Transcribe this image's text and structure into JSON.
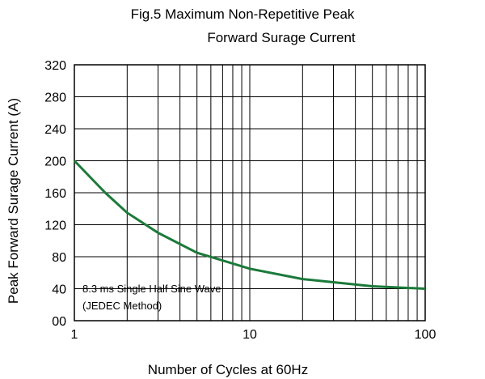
{
  "chart_data": {
    "type": "line",
    "title": "Fig.5  Maximum Non-Repetitive Peak",
    "subtitle": "Forward Surage Current",
    "xlabel": "Number of Cycles at 60Hz",
    "ylabel": "Peak Forward Surage Current (A)",
    "x_scale": "log",
    "xlim": [
      1,
      100
    ],
    "ylim": [
      0,
      320
    ],
    "x_ticks": [
      "1",
      "10",
      "100"
    ],
    "y_ticks": [
      "00",
      "40",
      "80",
      "120",
      "160",
      "200",
      "240",
      "280",
      "320"
    ],
    "grid": true,
    "series": [
      {
        "x": [
          1,
          1.5,
          2,
          3,
          5,
          10,
          20,
          50,
          100
        ],
        "y": [
          200,
          160,
          135,
          110,
          85,
          65,
          52,
          43,
          40
        ]
      }
    ],
    "annotations": [
      "8.3 ms Single Half Sine Wave",
      "(JEDEC Method)"
    ],
    "colors": {
      "line": "#1b7a3a",
      "grid": "#000000",
      "background": "#ffffff"
    }
  }
}
